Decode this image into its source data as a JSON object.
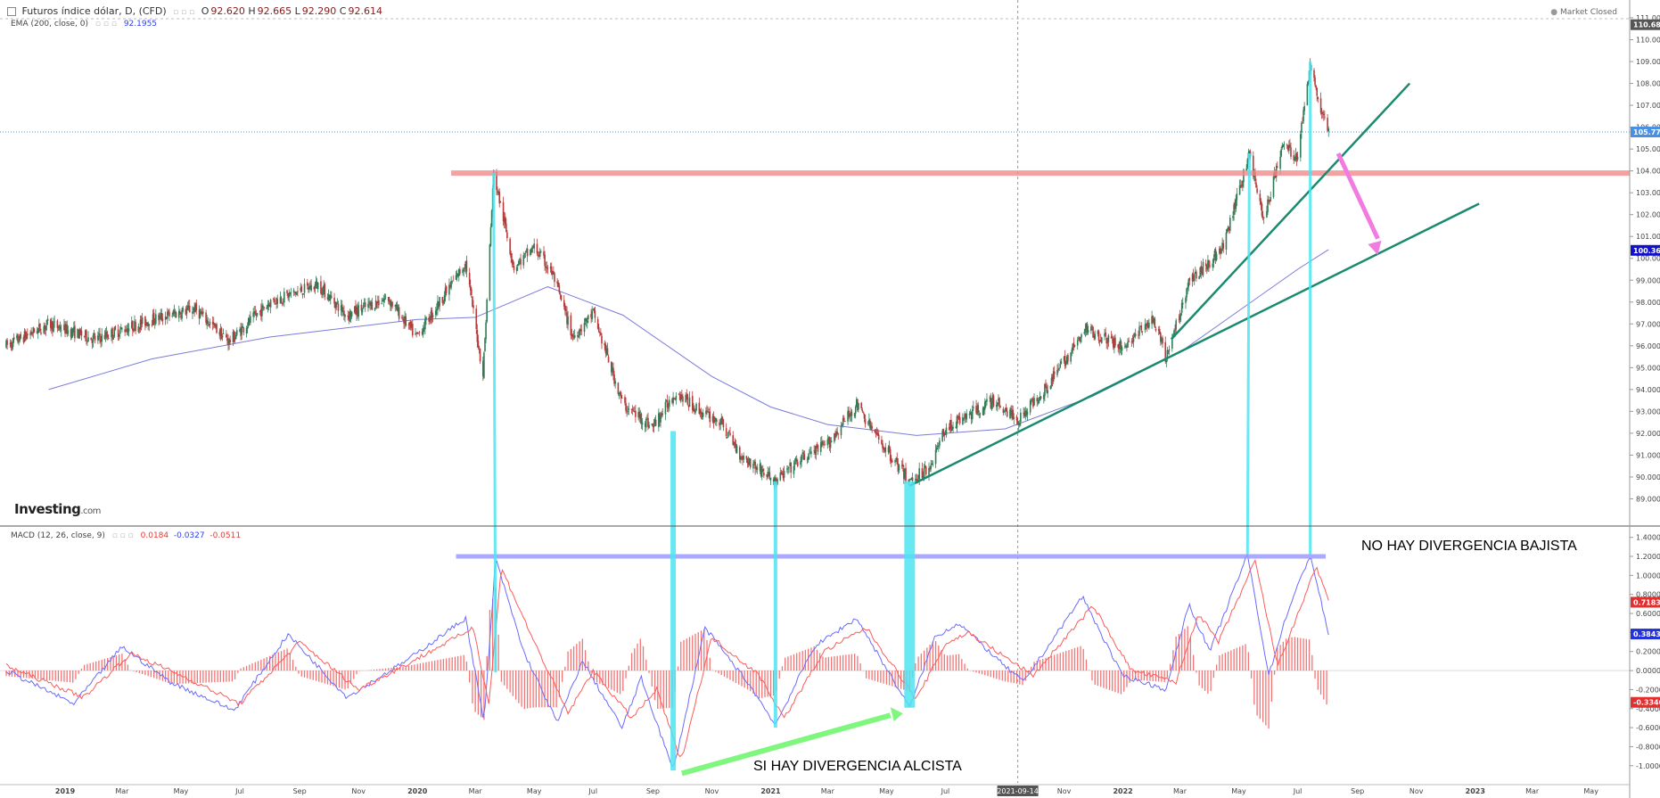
{
  "header": {
    "title": "Futuros índice dólar, D, (CFD)",
    "o_label": "O",
    "o_value": "92.620",
    "h_label": "H",
    "h_value": "92.665",
    "l_label": "L",
    "l_value": "92.290",
    "c_label": "C",
    "c_value": "92.614",
    "ema_label": "EMA (200, close, 0)",
    "ema_value": "92.1955",
    "market_status": "Market Closed",
    "brand": "Investing",
    "brand_suffix": ".com"
  },
  "macd_header": {
    "label": "MACD (12, 26, close, 9)",
    "v1": "0.0184",
    "v2": "-0.0327",
    "v3": "-0.0511"
  },
  "annotations": {
    "no_bearish": "NO HAY DIVERGENCIA BAJISTA",
    "yes_bullish": "SI  HAY DIVERGENCIA ALCISTA"
  },
  "chart_data": [
    {
      "type": "line",
      "title": "Futuros índice dólar, D, (CFD)",
      "yaxis_ticks": [
        "89.000",
        "90.000",
        "91.000",
        "92.000",
        "93.000",
        "94.000",
        "95.000",
        "96.000",
        "97.000",
        "98.000",
        "99.000",
        "100.000",
        "101.000",
        "102.000",
        "103.000",
        "104.000",
        "105.000",
        "106.000",
        "107.000",
        "108.000",
        "109.000",
        "110.000",
        "111.000"
      ],
      "ylim": [
        88.0,
        111.0
      ],
      "xaxis_ticks": [
        "2019",
        "Mar",
        "May",
        "Jul",
        "Sep",
        "Nov",
        "2020",
        "Mar",
        "May",
        "Jul",
        "Sep",
        "Nov",
        "2021",
        "Mar",
        "May",
        "Jul",
        "2021-09-14",
        "Nov",
        "2022",
        "Mar",
        "May",
        "Jul",
        "Sep",
        "Nov",
        "2023",
        "Mar",
        "May"
      ],
      "xlim": [
        "2018-11-01",
        "2023-06-10"
      ],
      "price_tags": [
        {
          "value": "110.686",
          "color": "#555555"
        },
        {
          "value": "105.779",
          "color": "#4a8fe2"
        },
        {
          "value": "100.365",
          "color": "#1111cc"
        }
      ],
      "series": [
        {
          "name": "price",
          "color": "#2a8f5f",
          "points": [
            [
              "2018-11-01",
              96.0
            ],
            [
              "2018-12-15",
              97.0
            ],
            [
              "2019-02-01",
              96.3
            ],
            [
              "2019-04-01",
              97.2
            ],
            [
              "2019-05-15",
              97.7
            ],
            [
              "2019-06-20",
              96.2
            ],
            [
              "2019-08-01",
              98.0
            ],
            [
              "2019-09-20",
              98.8
            ],
            [
              "2019-10-20",
              97.4
            ],
            [
              "2019-12-01",
              98.2
            ],
            [
              "2019-12-31",
              96.4
            ],
            [
              "2020-02-20",
              99.8
            ],
            [
              "2020-03-09",
              94.7
            ],
            [
              "2020-03-20",
              103.9
            ],
            [
              "2020-04-10",
              99.6
            ],
            [
              "2020-05-01",
              100.5
            ],
            [
              "2020-05-20",
              99.3
            ],
            [
              "2020-06-10",
              96.4
            ],
            [
              "2020-07-01",
              97.5
            ],
            [
              "2020-08-01",
              93.3
            ],
            [
              "2020-09-01",
              92.3
            ],
            [
              "2020-09-25",
              93.9
            ],
            [
              "2020-10-20",
              93.0
            ],
            [
              "2020-11-10",
              92.5
            ],
            [
              "2020-12-01",
              91.0
            ],
            [
              "2021-01-06",
              89.8
            ],
            [
              "2021-02-01",
              90.8
            ],
            [
              "2021-03-01",
              91.5
            ],
            [
              "2021-03-31",
              93.3
            ],
            [
              "2021-04-20",
              91.9
            ],
            [
              "2021-05-25",
              89.8
            ],
            [
              "2021-06-15",
              90.5
            ],
            [
              "2021-07-01",
              92.2
            ],
            [
              "2021-08-20",
              93.5
            ],
            [
              "2021-09-14",
              92.6
            ],
            [
              "2021-10-15",
              94.2
            ],
            [
              "2021-11-25",
              96.8
            ],
            [
              "2021-12-31",
              95.9
            ],
            [
              "2022-02-01",
              97.2
            ],
            [
              "2022-02-15",
              95.4
            ],
            [
              "2022-03-10",
              98.9
            ],
            [
              "2022-04-15",
              100.5
            ],
            [
              "2022-05-12",
              104.8
            ],
            [
              "2022-05-27",
              101.7
            ],
            [
              "2022-06-15",
              105.2
            ],
            [
              "2022-07-01",
              104.6
            ],
            [
              "2022-07-14",
              109.0
            ],
            [
              "2022-07-25",
              106.8
            ],
            [
              "2022-08-02",
              105.8
            ]
          ]
        },
        {
          "name": "EMA (200, close, 0)",
          "color": "#7b7bdb",
          "points": [
            [
              "2018-12-15",
              94.0
            ],
            [
              "2019-04-01",
              95.4
            ],
            [
              "2019-08-01",
              96.4
            ],
            [
              "2019-12-31",
              97.2
            ],
            [
              "2020-03-01",
              97.3
            ],
            [
              "2020-05-15",
              98.7
            ],
            [
              "2020-08-01",
              97.4
            ],
            [
              "2020-11-01",
              94.6
            ],
            [
              "2021-01-01",
              93.2
            ],
            [
              "2021-03-01",
              92.4
            ],
            [
              "2021-06-01",
              91.9
            ],
            [
              "2021-09-01",
              92.2
            ],
            [
              "2021-12-01",
              93.7
            ],
            [
              "2022-03-01",
              95.7
            ],
            [
              "2022-05-01",
              97.6
            ],
            [
              "2022-07-01",
              99.5
            ],
            [
              "2022-08-02",
              100.4
            ]
          ]
        }
      ]
    },
    {
      "type": "line",
      "title": "MACD (12, 26, close, 9)",
      "yaxis_ticks": [
        "-1.0000",
        "-0.8000",
        "-0.6000",
        "-0.4000",
        "-0.2000",
        "0.0000",
        "0.2000",
        "0.4000",
        "0.6000",
        "0.8000",
        "1.0000",
        "1.2000",
        "1.4000"
      ],
      "ylim": [
        -1.18,
        1.5
      ],
      "price_tags": [
        {
          "value": "0.7183",
          "color": "#e23030"
        },
        {
          "value": "0.3843",
          "color": "#2233dd"
        },
        {
          "value": "-0.3340",
          "color": "#e23030"
        }
      ],
      "series": [
        {
          "name": "MACD",
          "color": "#6a6aff",
          "points": [
            [
              "2018-11-01",
              0.0
            ],
            [
              "2019-01-10",
              -0.35
            ],
            [
              "2019-03-01",
              0.25
            ],
            [
              "2019-04-20",
              -0.12
            ],
            [
              "2019-06-25",
              -0.42
            ],
            [
              "2019-08-20",
              0.38
            ],
            [
              "2019-10-20",
              -0.28
            ],
            [
              "2019-12-20",
              0.1
            ],
            [
              "2020-02-20",
              0.55
            ],
            [
              "2020-03-10",
              -0.55
            ],
            [
              "2020-03-22",
              1.18
            ],
            [
              "2020-04-20",
              0.2
            ],
            [
              "2020-05-25",
              -0.55
            ],
            [
              "2020-06-20",
              0.1
            ],
            [
              "2020-07-31",
              -0.6
            ],
            [
              "2020-08-20",
              -0.08
            ],
            [
              "2020-09-22",
              -1.05
            ],
            [
              "2020-10-25",
              0.45
            ],
            [
              "2020-12-10",
              -0.15
            ],
            [
              "2021-01-06",
              -0.57
            ],
            [
              "2021-02-15",
              0.25
            ],
            [
              "2021-03-31",
              0.55
            ],
            [
              "2021-05-25",
              -0.39
            ],
            [
              "2021-06-20",
              0.35
            ],
            [
              "2021-07-15",
              0.5
            ],
            [
              "2021-08-31",
              0.05
            ],
            [
              "2021-09-20",
              -0.12
            ],
            [
              "2021-11-20",
              0.78
            ],
            [
              "2021-12-31",
              -0.05
            ],
            [
              "2022-02-15",
              -0.2
            ],
            [
              "2022-03-10",
              0.7
            ],
            [
              "2022-04-01",
              0.2
            ],
            [
              "2022-05-10",
              1.22
            ],
            [
              "2022-06-01",
              -0.05
            ],
            [
              "2022-06-20",
              0.6
            ],
            [
              "2022-07-14",
              1.22
            ],
            [
              "2022-08-02",
              0.38
            ]
          ]
        },
        {
          "name": "Signal",
          "color": "#ff5a5a",
          "points": [
            [
              "2018-11-01",
              0.05
            ],
            [
              "2019-01-20",
              -0.28
            ],
            [
              "2019-03-10",
              0.18
            ],
            [
              "2019-05-01",
              -0.05
            ],
            [
              "2019-07-01",
              -0.35
            ],
            [
              "2019-09-01",
              0.3
            ],
            [
              "2019-11-01",
              -0.2
            ],
            [
              "2019-12-31",
              0.12
            ],
            [
              "2020-02-28",
              0.45
            ],
            [
              "2020-03-15",
              -0.35
            ],
            [
              "2020-03-28",
              1.08
            ],
            [
              "2020-05-01",
              0.3
            ],
            [
              "2020-06-05",
              -0.45
            ],
            [
              "2020-07-01",
              0.0
            ],
            [
              "2020-08-10",
              -0.5
            ],
            [
              "2020-09-05",
              -0.2
            ],
            [
              "2020-09-30",
              -0.95
            ],
            [
              "2020-11-01",
              0.35
            ],
            [
              "2020-12-20",
              -0.05
            ],
            [
              "2021-01-15",
              -0.5
            ],
            [
              "2021-02-25",
              0.2
            ],
            [
              "2021-04-10",
              0.45
            ],
            [
              "2021-06-01",
              -0.3
            ],
            [
              "2021-07-01",
              0.28
            ],
            [
              "2021-07-25",
              0.4
            ],
            [
              "2021-09-10",
              0.08
            ],
            [
              "2021-09-30",
              -0.05
            ],
            [
              "2021-12-01",
              0.68
            ],
            [
              "2022-01-10",
              0.0
            ],
            [
              "2022-02-25",
              -0.12
            ],
            [
              "2022-03-20",
              0.6
            ],
            [
              "2022-04-10",
              0.3
            ],
            [
              "2022-05-18",
              1.15
            ],
            [
              "2022-06-10",
              0.05
            ],
            [
              "2022-06-28",
              0.5
            ],
            [
              "2022-07-20",
              1.1
            ],
            [
              "2022-08-02",
              0.72
            ]
          ]
        }
      ]
    }
  ]
}
